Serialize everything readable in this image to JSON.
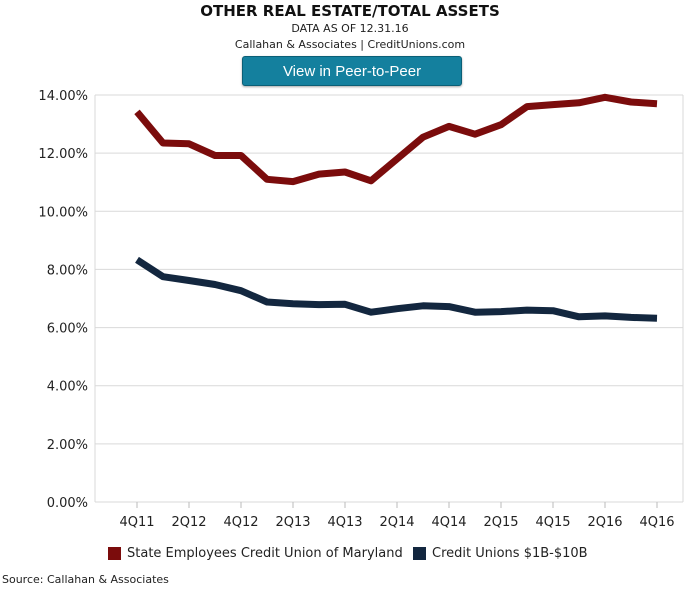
{
  "header": {
    "title": "OTHER REAL ESTATE/TOTAL ASSETS",
    "subtitle_date": "DATA AS OF 12.31.16",
    "subtitle_source": "Callahan & Associates | CreditUnions.com",
    "button_label": "View in Peer-to-Peer"
  },
  "footer": {
    "source": "Source: Callahan & Associates"
  },
  "colors": {
    "series_1": "#7b0c0c",
    "series_2": "#13273f",
    "grid": "#d9d9d9",
    "button": "#14809e"
  },
  "chart_data": {
    "type": "line",
    "title": "OTHER REAL ESTATE/TOTAL ASSETS",
    "x": [
      "4Q11",
      "1Q12",
      "2Q12",
      "3Q12",
      "4Q12",
      "1Q13",
      "2Q13",
      "3Q13",
      "4Q13",
      "1Q14",
      "2Q14",
      "3Q14",
      "4Q14",
      "1Q15",
      "2Q15",
      "3Q15",
      "4Q15",
      "1Q16",
      "2Q16",
      "3Q16",
      "4Q16"
    ],
    "tick_labels": [
      "4Q11",
      "2Q12",
      "4Q12",
      "2Q13",
      "4Q13",
      "2Q14",
      "4Q14",
      "2Q15",
      "4Q15",
      "2Q16",
      "4Q16"
    ],
    "yticks": [
      "0.00%",
      "2.00%",
      "4.00%",
      "6.00%",
      "8.00%",
      "10.00%",
      "12.00%",
      "14.00%"
    ],
    "ylim": [
      0,
      14
    ],
    "grid": true,
    "legend_position": "bottom",
    "series": [
      {
        "name": "State Employees Credit Union of Maryland",
        "values": [
          13.42,
          12.35,
          12.32,
          11.92,
          11.92,
          11.1,
          11.02,
          11.28,
          11.35,
          11.05,
          11.8,
          12.55,
          12.92,
          12.65,
          12.98,
          13.6,
          13.67,
          13.73,
          13.92,
          13.76,
          13.7
        ]
      },
      {
        "name": "Credit Unions $1B-$10B",
        "values": [
          8.33,
          7.75,
          7.62,
          7.48,
          7.27,
          6.88,
          6.82,
          6.79,
          6.8,
          6.53,
          6.65,
          6.75,
          6.72,
          6.53,
          6.55,
          6.6,
          6.58,
          6.37,
          6.4,
          6.35,
          6.32
        ]
      }
    ]
  }
}
